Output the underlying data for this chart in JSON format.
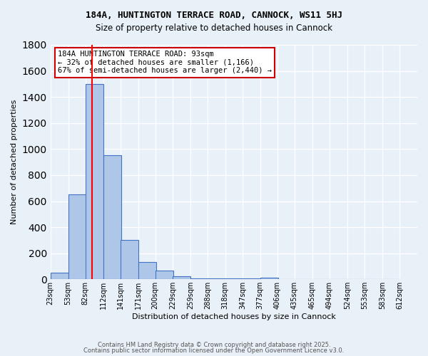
{
  "title1": "184A, HUNTINGTON TERRACE ROAD, CANNOCK, WS11 5HJ",
  "title2": "Size of property relative to detached houses in Cannock",
  "xlabel": "Distribution of detached houses by size in Cannock",
  "ylabel": "Number of detached properties",
  "bin_labels": [
    "23sqm",
    "53sqm",
    "82sqm",
    "112sqm",
    "141sqm",
    "171sqm",
    "200sqm",
    "229sqm",
    "259sqm",
    "288sqm",
    "318sqm",
    "347sqm",
    "377sqm",
    "406sqm",
    "435sqm",
    "465sqm",
    "494sqm",
    "524sqm",
    "553sqm",
    "583sqm",
    "612sqm"
  ],
  "bin_edges": [
    23,
    53,
    82,
    112,
    141,
    171,
    200,
    229,
    259,
    288,
    318,
    347,
    377,
    406,
    435,
    465,
    494,
    524,
    553,
    583,
    612
  ],
  "bar_heights": [
    50,
    650,
    1500,
    950,
    300,
    135,
    65,
    25,
    5,
    5,
    5,
    5,
    15,
    0,
    0,
    0,
    0,
    0,
    0,
    0
  ],
  "bar_color": "#aec6e8",
  "bar_edge_color": "#4472c4",
  "background_color": "#e8f0f8",
  "grid_color": "#ffffff",
  "red_line_x": 93,
  "annotation_title": "184A HUNTINGTON TERRACE ROAD: 93sqm",
  "annotation_line1": "← 32% of detached houses are smaller (1,166)",
  "annotation_line2": "67% of semi-detached houses are larger (2,440) →",
  "annotation_box_color": "#ffffff",
  "annotation_border_color": "#cc0000",
  "ylim": [
    0,
    1800
  ],
  "yticks": [
    0,
    200,
    400,
    600,
    800,
    1000,
    1200,
    1400,
    1600,
    1800
  ],
  "footer1": "Contains HM Land Registry data © Crown copyright and database right 2025.",
  "footer2": "Contains public sector information licensed under the Open Government Licence v3.0."
}
